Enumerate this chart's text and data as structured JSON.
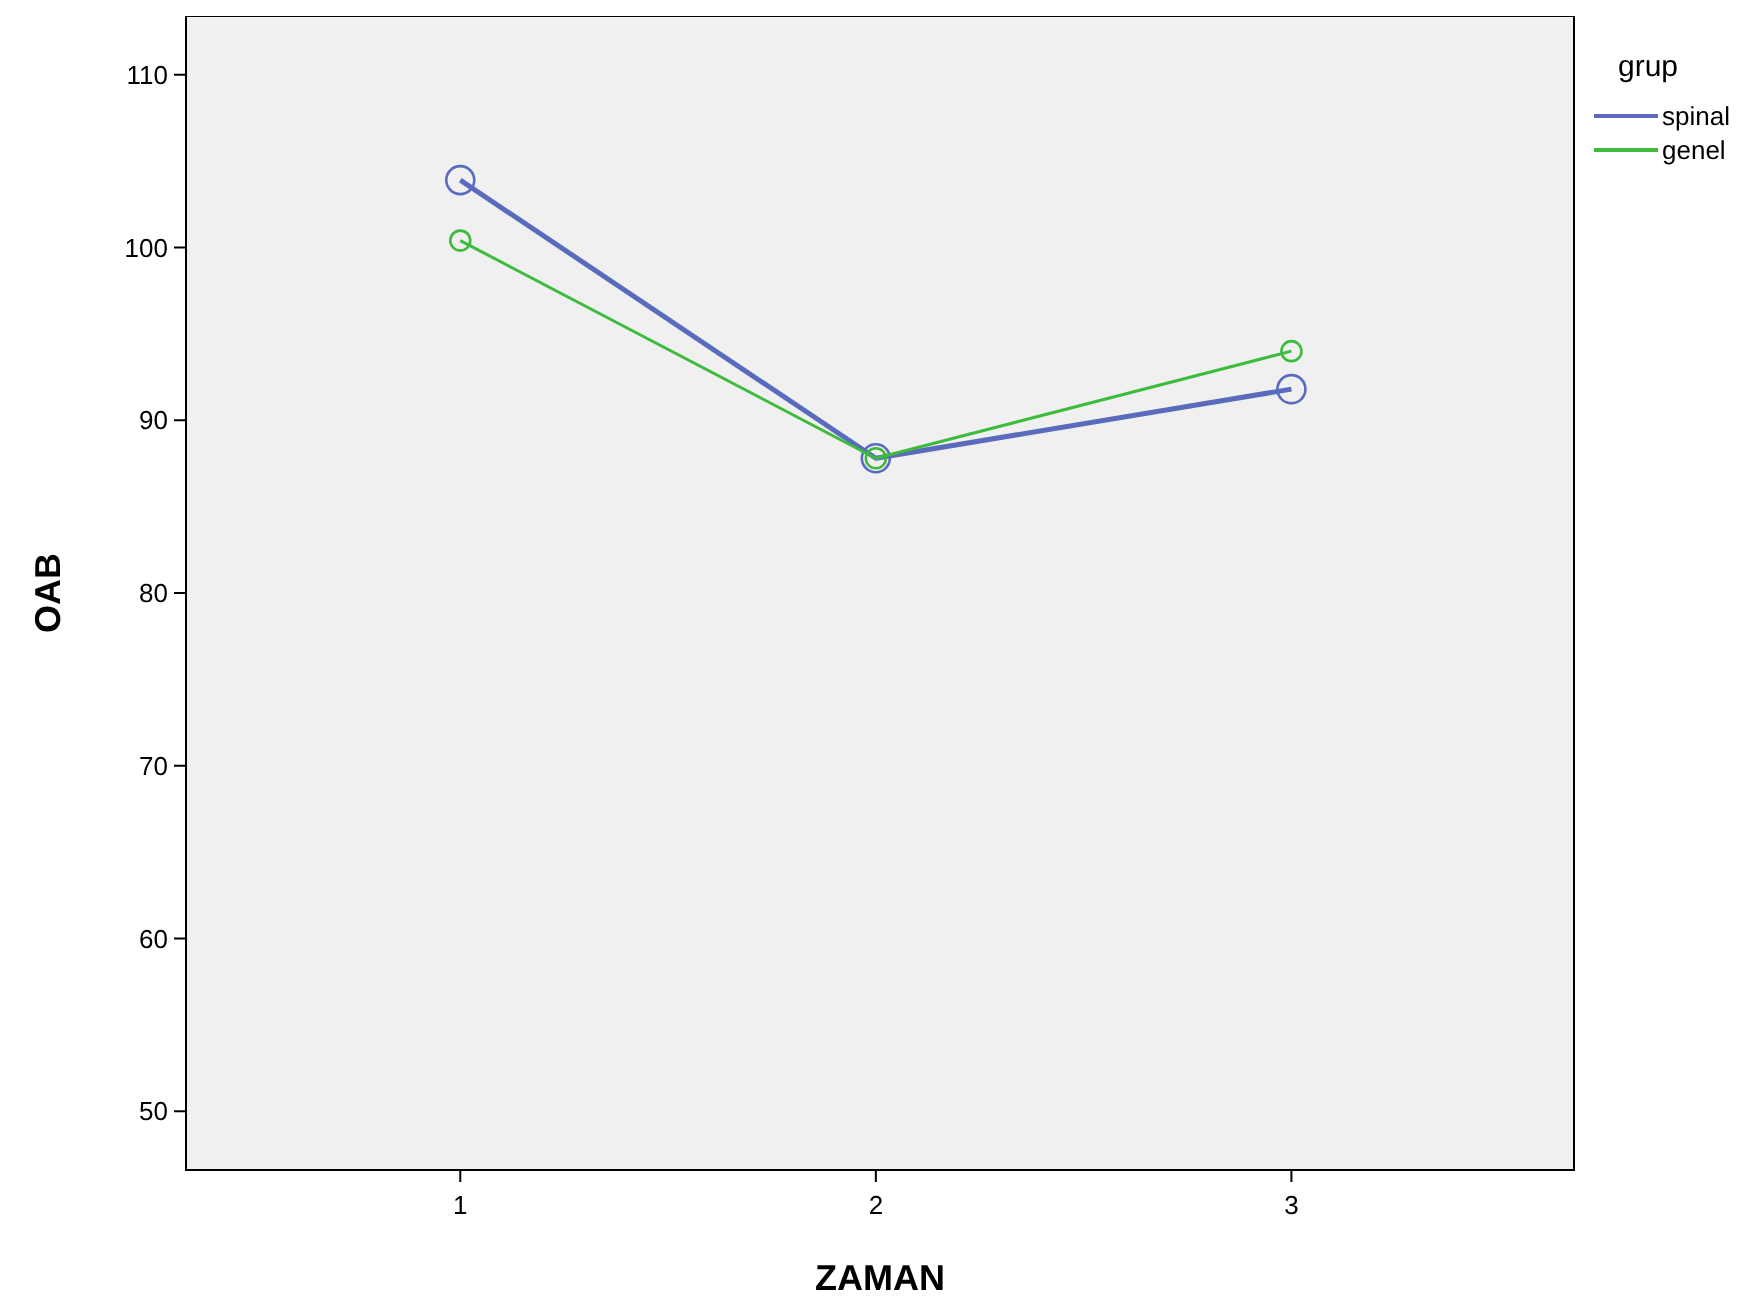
{
  "chart_data": {
    "type": "line",
    "xlabel": "ZAMAN",
    "ylabel": "OAB",
    "legend_title": "grup",
    "x": [
      1,
      2,
      3
    ],
    "xlim": [
      0.34,
      3.68
    ],
    "xticks": [
      1,
      2,
      3
    ],
    "ylim": [
      46.6,
      113.4
    ],
    "yticks": [
      50,
      60,
      70,
      80,
      90,
      100,
      110
    ],
    "marker": "circle",
    "grid": false,
    "legend": "top right",
    "series": [
      {
        "name": "spinal",
        "color": "#5a6bbd",
        "values": [
          103.9,
          87.8,
          91.8
        ]
      },
      {
        "name": "genel",
        "color": "#3dbb3d",
        "values": [
          100.4,
          87.8,
          94.0
        ]
      }
    ]
  }
}
